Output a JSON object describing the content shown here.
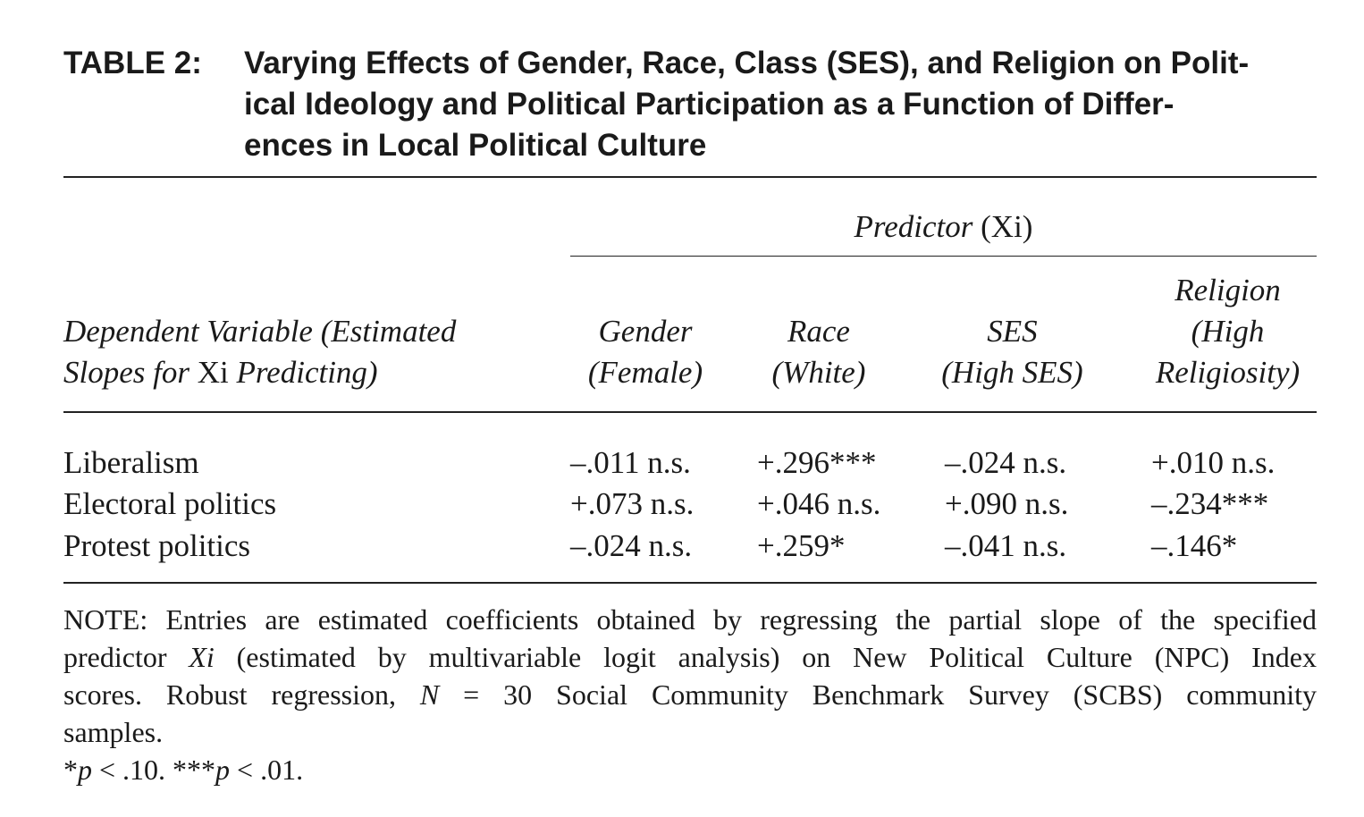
{
  "table": {
    "label": "TABLE 2:",
    "title_lines": [
      "Varying Effects of Gender, Race, Class (SES), and Religion on Polit-",
      "ical Ideology and Political Participation as a Function of Differ-",
      "ences in Local Political Culture"
    ],
    "spanner": {
      "italic": "Predictor",
      "plain": "(Xi)"
    },
    "stub_header": {
      "line1": "Dependent Variable (Estimated",
      "line2_a": "Slopes for ",
      "line2_b": "Xi",
      "line2_c": " Predicting)"
    },
    "columns": [
      {
        "line1": "Gender",
        "line2": "(Female)"
      },
      {
        "line1": "Race",
        "line2": "(White)"
      },
      {
        "line1": "SES",
        "line2": "(High SES)"
      },
      {
        "line0": "Religion",
        "line1": "(High",
        "line2": "Religiosity)"
      }
    ],
    "rows": [
      {
        "label": "Liberalism",
        "values": [
          "–.011 n.s.",
          "+.296***",
          "–.024 n.s.",
          "+.010 n.s."
        ]
      },
      {
        "label": "Electoral politics",
        "values": [
          "+.073 n.s.",
          "+.046 n.s.",
          "+.090 n.s.",
          "–.234***"
        ]
      },
      {
        "label": "Protest politics",
        "values": [
          "–.024 n.s.",
          "+.259*",
          "–.041 n.s.",
          "–.146*"
        ]
      }
    ],
    "note": {
      "l1": "NOTE: Entries are estimated coefficients obtained by regressing the partial slope of the specified",
      "l2_a": "predictor ",
      "l2_b": "Xi",
      "l2_c": " (estimated by multivariable logit analysis) on New Political Culture (NPC) Index",
      "l3_a": "scores. Robust regression, ",
      "l3_b": "N",
      "l3_c": " = 30 Social Community Benchmark Survey (SCBS) community",
      "l4": "samples.",
      "sig_a1": "*",
      "sig_b1": "p",
      "sig_c1": " < .10. ***",
      "sig_b2": "p",
      "sig_c2": " < .01."
    }
  }
}
